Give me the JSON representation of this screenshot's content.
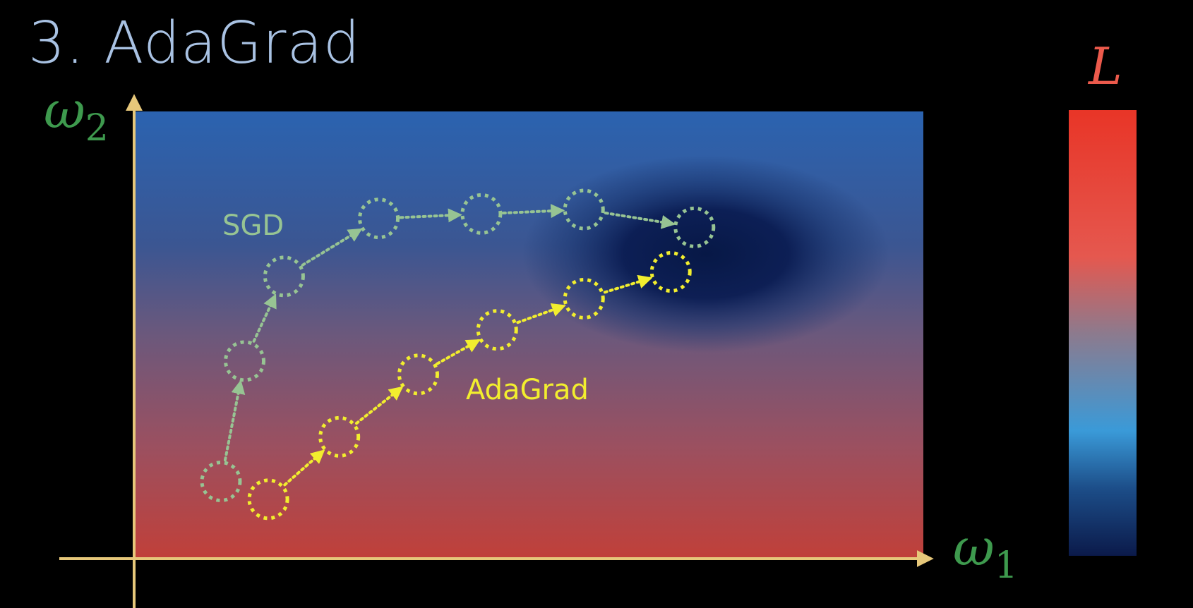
{
  "title": "3. AdaGrad",
  "axes": {
    "x_label": "ω",
    "x_sub": "1",
    "y_label": "ω",
    "y_sub": "2"
  },
  "colorbar": {
    "label": "L"
  },
  "colors": {
    "sgd": "#97c493",
    "adagrad": "#f2ee2e",
    "axis": "#e6c77a"
  },
  "sgd": {
    "label": "SGD",
    "points": [
      [
        0.11,
        0.17
      ],
      [
        0.14,
        0.44
      ],
      [
        0.19,
        0.63
      ],
      [
        0.31,
        0.76
      ],
      [
        0.44,
        0.77
      ],
      [
        0.57,
        0.78
      ],
      [
        0.71,
        0.74
      ]
    ]
  },
  "adagrad": {
    "label": "AdaGrad",
    "points": [
      [
        0.17,
        0.13
      ],
      [
        0.26,
        0.27
      ],
      [
        0.36,
        0.41
      ],
      [
        0.46,
        0.51
      ],
      [
        0.57,
        0.58
      ],
      [
        0.68,
        0.64
      ]
    ]
  }
}
